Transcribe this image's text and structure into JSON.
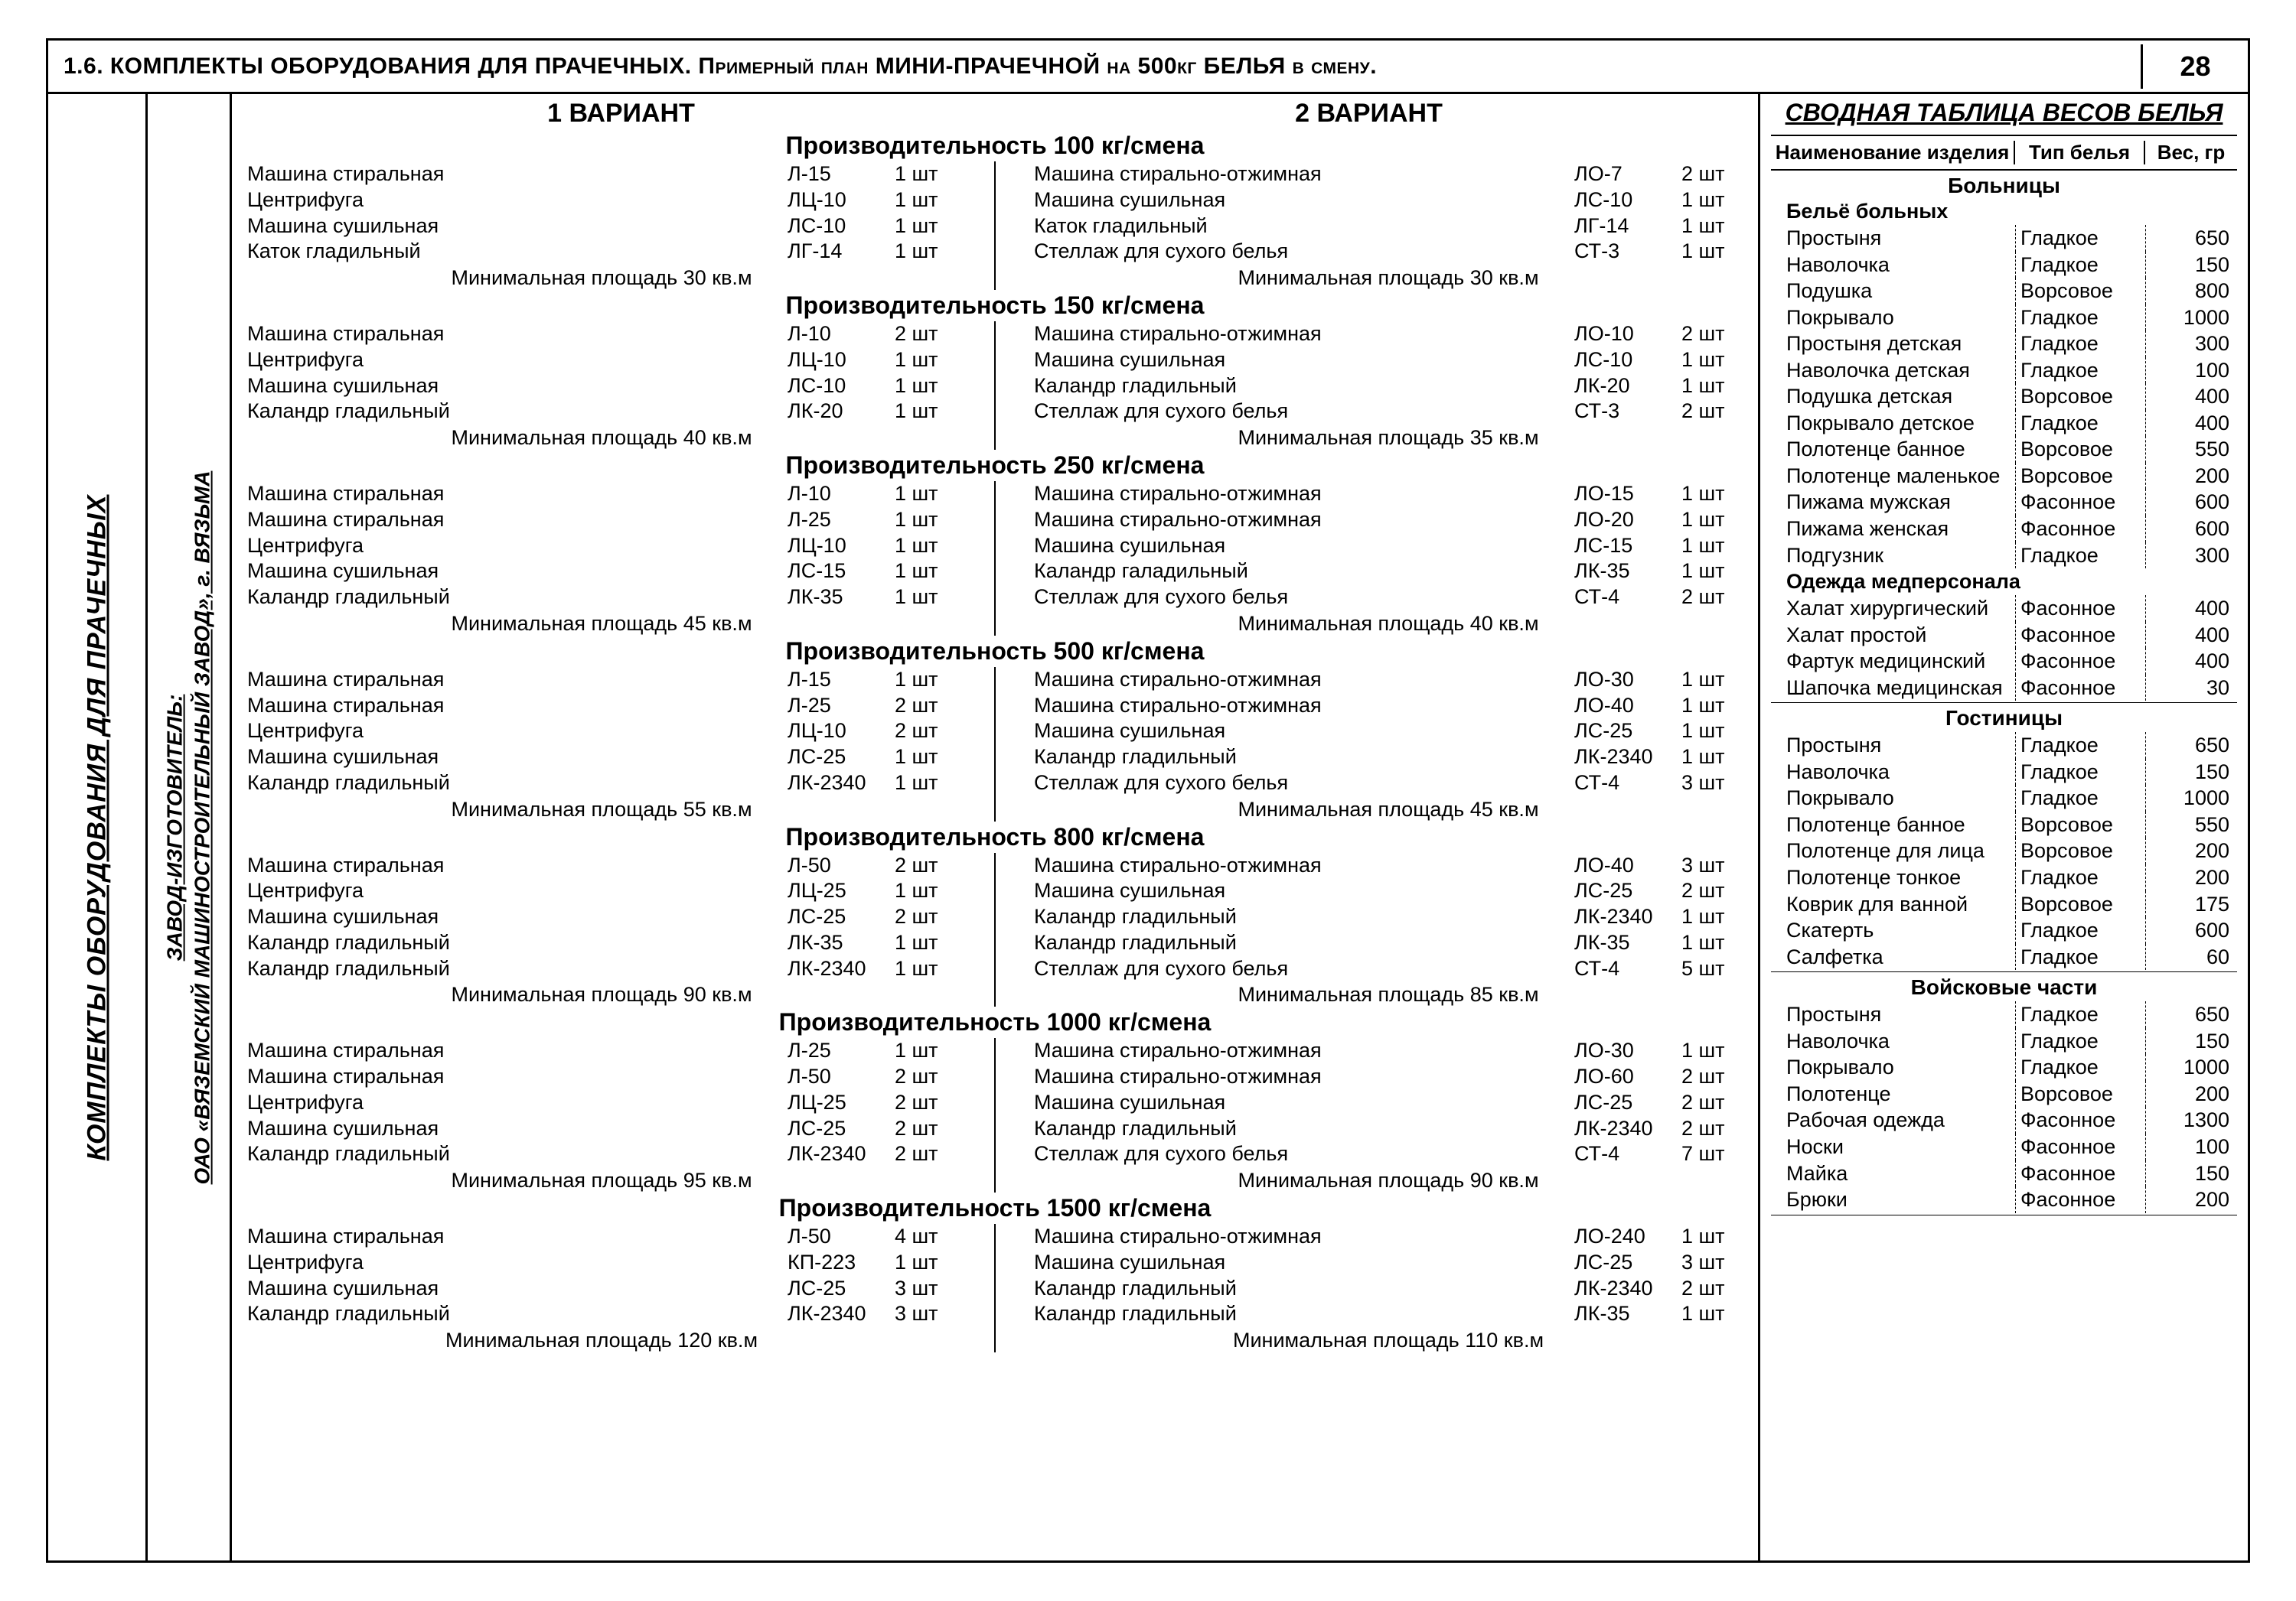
{
  "page": {
    "title": "1.6. КОМПЛЕКТЫ ОБОРУДОВАНИЯ ДЛЯ ПРАЧЕЧНЫХ. Примерный план МИНИ-ПРАЧЕЧНОЙ на 500кг БЕЛЬЯ в смену.",
    "number": "28"
  },
  "spine": {
    "main": "КОМПЛЕКТЫ ОБОРУДОВАНИЯ ДЛЯ ПРАЧЕЧНЫХ",
    "sub1": "ЗАВОД-ИЗГОТОВИТЕЛЬ:",
    "sub2": "ОАО «ВЯЗЕМСКИЙ МАШИНОСТРОИТЕЛЬНЫЙ ЗАВОД», г. ВЯЗЬМА"
  },
  "variants": {
    "head1": "1 ВАРИАНТ",
    "head2": "2 ВАРИАНТ"
  },
  "caps": [
    {
      "title": "Производительность 100 кг/смена",
      "left": [
        {
          "n": "Машина стиральная",
          "m": "Л-15",
          "q": "1 шт"
        },
        {
          "n": "Центрифуга",
          "m": "ЛЦ-10",
          "q": "1 шт"
        },
        {
          "n": "Машина сушильная",
          "m": "ЛС-10",
          "q": "1 шт"
        },
        {
          "n": "Каток гладильный",
          "m": "ЛГ-14",
          "q": "1 шт"
        }
      ],
      "left_area": "Минимальная площадь 30 кв.м",
      "right": [
        {
          "n": "Машина стирально-отжимная",
          "m": "ЛО-7",
          "q": "2 шт"
        },
        {
          "n": "Машина сушильная",
          "m": "ЛС-10",
          "q": "1 шт"
        },
        {
          "n": "Каток гладильный",
          "m": "ЛГ-14",
          "q": "1 шт"
        },
        {
          "n": "Стеллаж для сухого белья",
          "m": "СТ-3",
          "q": "1 шт"
        }
      ],
      "right_area": "Минимальная площадь 30 кв.м"
    },
    {
      "title": "Производительность 150 кг/смена",
      "left": [
        {
          "n": "Машина стиральная",
          "m": "Л-10",
          "q": "2 шт"
        },
        {
          "n": "Центрифуга",
          "m": "ЛЦ-10",
          "q": "1 шт"
        },
        {
          "n": "Машина сушильная",
          "m": "ЛС-10",
          "q": "1 шт"
        },
        {
          "n": "Каландр гладильный",
          "m": "ЛК-20",
          "q": "1 шт"
        }
      ],
      "left_area": "Минимальная площадь 40 кв.м",
      "right": [
        {
          "n": "Машина стирально-отжимная",
          "m": "ЛО-10",
          "q": "2 шт"
        },
        {
          "n": "Машина сушильная",
          "m": "ЛС-10",
          "q": "1 шт"
        },
        {
          "n": "Каландр гладильный",
          "m": "ЛК-20",
          "q": "1 шт"
        },
        {
          "n": "Стеллаж для сухого белья",
          "m": "СТ-3",
          "q": "2 шт"
        }
      ],
      "right_area": "Минимальная площадь 35 кв.м"
    },
    {
      "title": "Производительность 250 кг/смена",
      "left": [
        {
          "n": "Машина стиральная",
          "m": "Л-10",
          "q": "1 шт"
        },
        {
          "n": "Машина стиральная",
          "m": "Л-25",
          "q": "1 шт"
        },
        {
          "n": "Центрифуга",
          "m": "ЛЦ-10",
          "q": "1 шт"
        },
        {
          "n": "Машина сушильная",
          "m": "ЛС-15",
          "q": "1 шт"
        },
        {
          "n": "Каландр гладильный",
          "m": "ЛК-35",
          "q": "1 шт"
        }
      ],
      "left_area": "Минимальная площадь 45 кв.м",
      "right": [
        {
          "n": "Машина стирально-отжимная",
          "m": "ЛО-15",
          "q": "1 шт"
        },
        {
          "n": "Машина стирально-отжимная",
          "m": "ЛО-20",
          "q": "1 шт"
        },
        {
          "n": "Машина сушильная",
          "m": "ЛС-15",
          "q": "1 шт"
        },
        {
          "n": "Каландр галадильный",
          "m": "ЛК-35",
          "q": "1 шт"
        },
        {
          "n": "Стеллаж для сухого белья",
          "m": "СТ-4",
          "q": "2 шт"
        }
      ],
      "right_area": "Минимальная площадь 40 кв.м"
    },
    {
      "title": "Производительность 500 кг/смена",
      "left": [
        {
          "n": "Машина стиральная",
          "m": "Л-15",
          "q": "1 шт"
        },
        {
          "n": "Машина стиральная",
          "m": "Л-25",
          "q": "2 шт"
        },
        {
          "n": "Центрифуга",
          "m": "ЛЦ-10",
          "q": "2 шт"
        },
        {
          "n": "Машина сушильная",
          "m": "ЛС-25",
          "q": "1 шт"
        },
        {
          "n": "Каландр гладильный",
          "m": "ЛК-2340",
          "q": "1 шт"
        }
      ],
      "left_area": "Минимальная площадь 55 кв.м",
      "right": [
        {
          "n": "Машина стирально-отжимная",
          "m": "ЛО-30",
          "q": "1 шт"
        },
        {
          "n": "Машина стирально-отжимная",
          "m": "ЛО-40",
          "q": "1 шт"
        },
        {
          "n": "Машина сушильная",
          "m": "ЛС-25",
          "q": "1 шт"
        },
        {
          "n": "Каландр гладильный",
          "m": "ЛК-2340",
          "q": "1 шт"
        },
        {
          "n": "Стеллаж для сухого белья",
          "m": "СТ-4",
          "q": "3 шт"
        }
      ],
      "right_area": "Минимальная площадь 45 кв.м"
    },
    {
      "title": "Производительность 800 кг/смена",
      "left": [
        {
          "n": "Машина стиральная",
          "m": "Л-50",
          "q": "2 шт"
        },
        {
          "n": "Центрифуга",
          "m": "ЛЦ-25",
          "q": "1 шт"
        },
        {
          "n": "Машина сушильная",
          "m": "ЛС-25",
          "q": "2 шт"
        },
        {
          "n": "Каландр гладильный",
          "m": "ЛК-35",
          "q": "1 шт"
        },
        {
          "n": "Каландр гладильный",
          "m": "ЛК-2340",
          "q": "1 шт"
        }
      ],
      "left_area": "Минимальная площадь 90 кв.м",
      "right": [
        {
          "n": "Машина стирально-отжимная",
          "m": "ЛО-40",
          "q": "3 шт"
        },
        {
          "n": "Машина сушильная",
          "m": "ЛС-25",
          "q": "2 шт"
        },
        {
          "n": "Каландр гладильный",
          "m": "ЛК-2340",
          "q": "1 шт"
        },
        {
          "n": "Каландр гладильный",
          "m": "ЛК-35",
          "q": "1 шт"
        },
        {
          "n": "Стеллаж для сухого белья",
          "m": "СТ-4",
          "q": "5 шт"
        }
      ],
      "right_area": "Минимальная площадь 85 кв.м"
    },
    {
      "title": "Производительность 1000 кг/смена",
      "left": [
        {
          "n": "Машина стиральная",
          "m": "Л-25",
          "q": "1 шт"
        },
        {
          "n": "Машина стиральная",
          "m": "Л-50",
          "q": "2 шт"
        },
        {
          "n": "Центрифуга",
          "m": "ЛЦ-25",
          "q": "2 шт"
        },
        {
          "n": "Машина сушильная",
          "m": "ЛС-25",
          "q": "2 шт"
        },
        {
          "n": "Каландр гладильный",
          "m": "ЛК-2340",
          "q": "2 шт"
        }
      ],
      "left_area": "Минимальная площадь 95 кв.м",
      "right": [
        {
          "n": "Машина стирально-отжимная",
          "m": "ЛО-30",
          "q": "1 шт"
        },
        {
          "n": "Машина стирально-отжимная",
          "m": "ЛО-60",
          "q": "2 шт"
        },
        {
          "n": "Машина сушильная",
          "m": "ЛС-25",
          "q": "2 шт"
        },
        {
          "n": "Каландр гладильный",
          "m": "ЛК-2340",
          "q": "2 шт"
        },
        {
          "n": "Стеллаж для сухого белья",
          "m": "СТ-4",
          "q": "7 шт"
        }
      ],
      "right_area": "Минимальная площадь 90 кв.м"
    },
    {
      "title": "Производительность 1500 кг/смена",
      "left": [
        {
          "n": "Машина стиральная",
          "m": "Л-50",
          "q": "4 шт"
        },
        {
          "n": "Центрифуга",
          "m": "КП-223",
          "q": "1 шт"
        },
        {
          "n": "Машина сушильная",
          "m": "ЛС-25",
          "q": "3 шт"
        },
        {
          "n": "Каландр гладильный",
          "m": "ЛК-2340",
          "q": "3 шт"
        }
      ],
      "left_area": "Минимальная площадь 120 кв.м",
      "right": [
        {
          "n": "Машина стирально-отжимная",
          "m": "ЛО-240",
          "q": "1 шт"
        },
        {
          "n": "Машина сушильная",
          "m": "ЛС-25",
          "q": "3 шт"
        },
        {
          "n": "Каландр гладильный",
          "m": "ЛК-2340",
          "q": "2 шт"
        },
        {
          "n": "Каландр гладильный",
          "m": "ЛК-35",
          "q": "1 шт"
        }
      ],
      "right_area": "Минимальная площадь 110 кв.м"
    }
  ],
  "weights": {
    "title": "СВОДНАЯ ТАБЛИЦА ВЕСОВ БЕЛЬЯ",
    "head": {
      "c1": "Наименование изделия",
      "c2": "Тип белья",
      "c3": "Вес, гр"
    },
    "sections": [
      {
        "title": "Больницы",
        "groups": [
          {
            "subtitle": "Бельё больных",
            "rows": [
              {
                "n": "Простыня",
                "t": "Гладкое",
                "w": "650"
              },
              {
                "n": "Наволочка",
                "t": "Гладкое",
                "w": "150"
              },
              {
                "n": "Подушка",
                "t": "Ворсовое",
                "w": "800"
              },
              {
                "n": "Покрывало",
                "t": "Гладкое",
                "w": "1000"
              },
              {
                "n": "Простыня детская",
                "t": "Гладкое",
                "w": "300"
              },
              {
                "n": "Наволочка детская",
                "t": "Гладкое",
                "w": "100"
              },
              {
                "n": "Подушка детская",
                "t": "Ворсовое",
                "w": "400"
              },
              {
                "n": "Покрывало детское",
                "t": "Гладкое",
                "w": "400"
              },
              {
                "n": "Полотенце банное",
                "t": "Ворсовое",
                "w": "550"
              },
              {
                "n": "Полотенце маленькое",
                "t": "Ворсовое",
                "w": "200"
              },
              {
                "n": "Пижама мужская",
                "t": "Фасонное",
                "w": "600"
              },
              {
                "n": "Пижама женская",
                "t": "Фасонное",
                "w": "600"
              },
              {
                "n": "Подгузник",
                "t": "Гладкое",
                "w": "300"
              }
            ]
          },
          {
            "subtitle": "Одежда медперсонала",
            "rows": [
              {
                "n": "Халат хирургический",
                "t": "Фасонное",
                "w": "400"
              },
              {
                "n": "Халат простой",
                "t": "Фасонное",
                "w": "400"
              },
              {
                "n": "Фартук медицинский",
                "t": "Фасонное",
                "w": "400"
              },
              {
                "n": "Шапочка медицинская",
                "t": "Фасонное",
                "w": "30"
              }
            ]
          }
        ]
      },
      {
        "title": "Гостиницы",
        "groups": [
          {
            "subtitle": "",
            "rows": [
              {
                "n": "Простыня",
                "t": "Гладкое",
                "w": "650"
              },
              {
                "n": "Наволочка",
                "t": "Гладкое",
                "w": "150"
              },
              {
                "n": "Покрывало",
                "t": "Гладкое",
                "w": "1000"
              },
              {
                "n": "Полотенце банное",
                "t": "Ворсовое",
                "w": "550"
              },
              {
                "n": "Полотенце для лица",
                "t": "Ворсовое",
                "w": "200"
              },
              {
                "n": "Полотенце тонкое",
                "t": "Гладкое",
                "w": "200"
              },
              {
                "n": "Коврик для ванной",
                "t": "Ворсовое",
                "w": "175"
              },
              {
                "n": "Скатерть",
                "t": "Гладкое",
                "w": "600"
              },
              {
                "n": "Салфетка",
                "t": "Гладкое",
                "w": "60"
              }
            ]
          }
        ]
      },
      {
        "title": "Войсковые части",
        "groups": [
          {
            "subtitle": "",
            "rows": [
              {
                "n": "Простыня",
                "t": "Гладкое",
                "w": "650"
              },
              {
                "n": "Наволочка",
                "t": "Гладкое",
                "w": "150"
              },
              {
                "n": "Покрывало",
                "t": "Гладкое",
                "w": "1000"
              },
              {
                "n": "Полотенце",
                "t": "Ворсовое",
                "w": "200"
              },
              {
                "n": "Рабочая одежда",
                "t": "Фасонное",
                "w": "1300"
              },
              {
                "n": "Носки",
                "t": "Фасонное",
                "w": "100"
              },
              {
                "n": "Майка",
                "t": "Фасонное",
                "w": "150"
              },
              {
                "n": "Брюки",
                "t": "Фасонное",
                "w": "200"
              }
            ]
          }
        ]
      }
    ]
  }
}
